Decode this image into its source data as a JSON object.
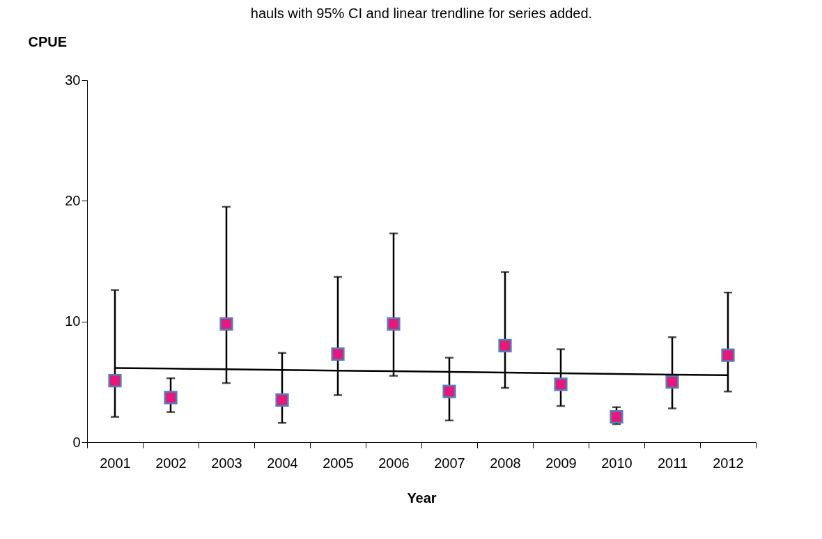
{
  "chart_data": {
    "type": "scatter",
    "title": "hauls with 95% CI and linear trendline for series added.",
    "xlabel": "Year",
    "ylabel": "CPUE",
    "categories": [
      "2001",
      "2002",
      "2003",
      "2004",
      "2005",
      "2006",
      "2007",
      "2008",
      "2009",
      "2010",
      "2011",
      "2012"
    ],
    "series": [
      {
        "color": "#e6197a",
        "marker": "square",
        "values": [
          5.1,
          3.7,
          9.8,
          3.5,
          7.3,
          9.8,
          4.2,
          8.0,
          4.8,
          2.1,
          5.0,
          7.2
        ],
        "errors": [
          [
            2.1,
            12.6
          ],
          [
            2.5,
            5.3
          ],
          [
            4.9,
            19.5
          ],
          [
            1.6,
            7.4
          ],
          [
            3.9,
            13.7
          ],
          [
            5.5,
            17.3
          ],
          [
            1.8,
            7.0
          ],
          [
            4.5,
            14.1
          ],
          [
            3.0,
            7.7
          ],
          [
            1.5,
            2.9
          ],
          [
            2.8,
            8.7
          ],
          [
            4.2,
            12.4
          ]
        ]
      },
      {
        "type": "line",
        "color": "#000000",
        "values": [
          6.15,
          6.1,
          6.04,
          5.99,
          5.93,
          5.88,
          5.82,
          5.77,
          5.71,
          5.66,
          5.6,
          5.55
        ]
      }
    ],
    "ylim": [
      0,
      30
    ],
    "yticks": [
      0,
      10,
      20,
      30
    ],
    "grid": false
  }
}
